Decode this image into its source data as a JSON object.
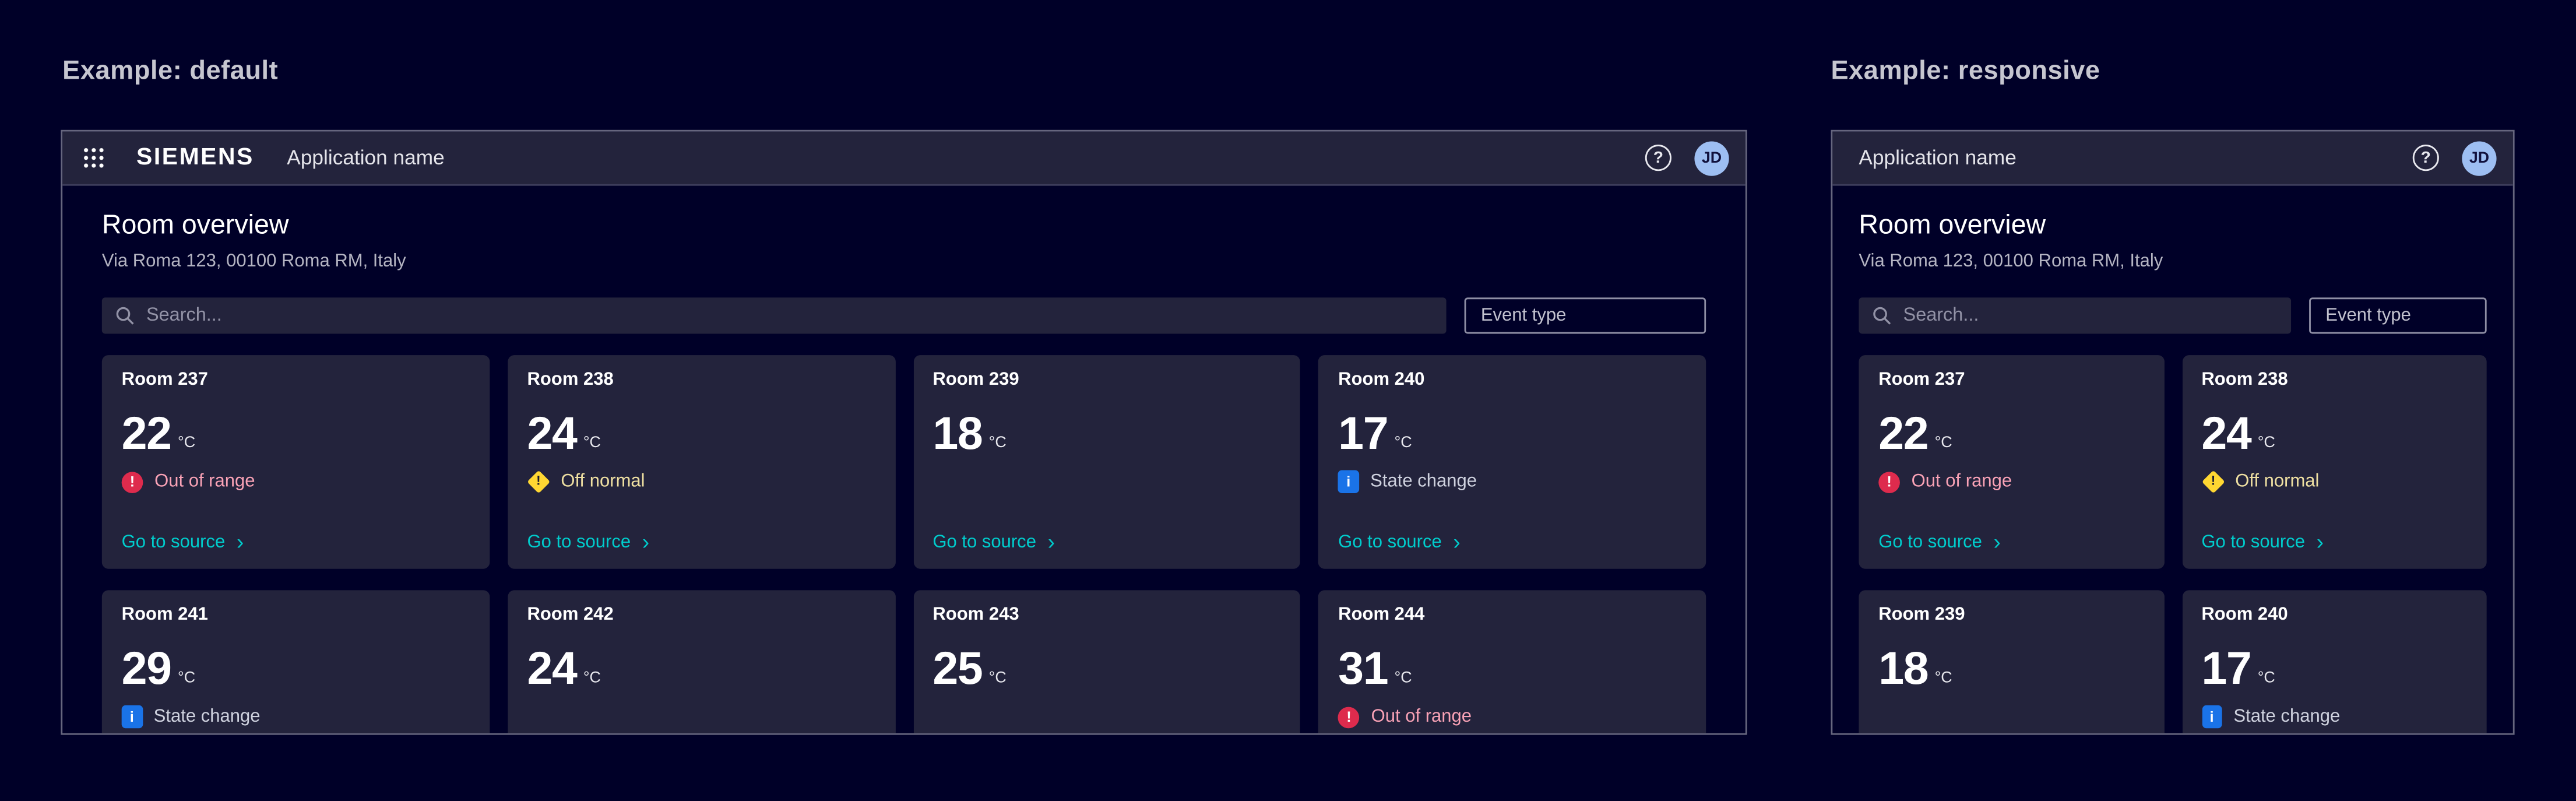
{
  "colors": {
    "page_bg": "#000028",
    "surface": "#23233C",
    "border": "#66667E",
    "field_border": "#8F8FA5",
    "caption": "#C6C6D0",
    "text_secondary": "#B4B4C2",
    "text_muted": "#9292A6",
    "accent_teal": "#00CCCC",
    "danger": "#DE2B4D",
    "danger_text": "#F9A2B6",
    "warning": "#FFD732",
    "warning_text": "#EFE0A2",
    "info": "#1A73E8",
    "info_text": "#CFD2DF",
    "avatar_bg": "#9DBEF2",
    "avatar_text": "#10103C"
  },
  "icons": {
    "help_glyph": "?",
    "link_chevron": "›"
  },
  "status_glyphs": {
    "danger": "!",
    "warning": "!",
    "info": "i"
  },
  "examples": [
    {
      "caption": "Example: default",
      "header": {
        "brand": "SIEMENS",
        "app_name": "Application name",
        "avatar": "JD"
      },
      "content": {
        "title": "Room overview",
        "subtitle": "Via Roma 123, 00100 Roma RM, Italy",
        "search_placeholder": "Search...",
        "event_type": "Event type"
      },
      "rooms": [
        {
          "name": "Room 237",
          "value": "22",
          "unit": "°C",
          "event": {
            "kind": "danger",
            "label": "Out of range"
          },
          "link": "Go to source"
        },
        {
          "name": "Room 238",
          "value": "24",
          "unit": "°C",
          "event": {
            "kind": "warning",
            "label": "Off normal"
          },
          "link": "Go to source"
        },
        {
          "name": "Room 239",
          "value": "18",
          "unit": "°C",
          "event": null,
          "link": "Go to source"
        },
        {
          "name": "Room 240",
          "value": "17",
          "unit": "°C",
          "event": {
            "kind": "info",
            "label": "State change"
          },
          "link": "Go to source"
        },
        {
          "name": "Room 241",
          "value": "29",
          "unit": "°C",
          "event": {
            "kind": "info",
            "label": "State change"
          },
          "link": null
        },
        {
          "name": "Room 242",
          "value": "24",
          "unit": "°C",
          "event": null,
          "link": null
        },
        {
          "name": "Room 243",
          "value": "25",
          "unit": "°C",
          "event": null,
          "link": null
        },
        {
          "name": "Room 244",
          "value": "31",
          "unit": "°C",
          "event": {
            "kind": "danger",
            "label": "Out of range"
          },
          "link": null
        }
      ]
    },
    {
      "caption": "Example: responsive",
      "header": {
        "app_name": "Application name",
        "avatar": "JD"
      },
      "content": {
        "title": "Room overview",
        "subtitle": "Via Roma 123, 00100 Roma RM, Italy",
        "search_placeholder": "Search...",
        "event_type": "Event type"
      },
      "rooms": [
        {
          "name": "Room 237",
          "value": "22",
          "unit": "°C",
          "event": {
            "kind": "danger",
            "label": "Out of range"
          },
          "link": "Go to source"
        },
        {
          "name": "Room 238",
          "value": "24",
          "unit": "°C",
          "event": {
            "kind": "warning",
            "label": "Off normal"
          },
          "link": "Go to source"
        },
        {
          "name": "Room 239",
          "value": "18",
          "unit": "°C",
          "event": null,
          "link": null
        },
        {
          "name": "Room 240",
          "value": "17",
          "unit": "°C",
          "event": {
            "kind": "info",
            "label": "State change"
          },
          "link": null
        }
      ]
    }
  ]
}
